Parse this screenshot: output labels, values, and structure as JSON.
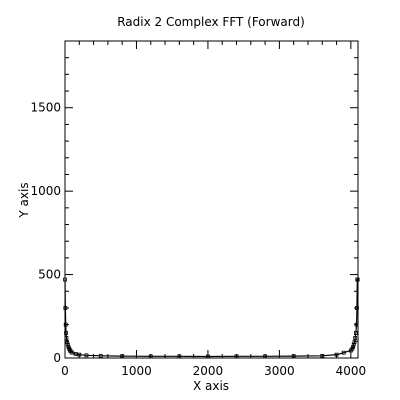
{
  "chart_data": {
    "type": "line",
    "title": "Radix 2 Complex FFT (Forward)",
    "xlabel": "X axis",
    "ylabel": "Y axis",
    "xlim": [
      0,
      4100
    ],
    "ylim": [
      0,
      1900
    ],
    "x_ticks": [
      0,
      1000,
      2000,
      3000,
      4000
    ],
    "x_tick_labels": [
      "0",
      "1000",
      "2000",
      "3000",
      "4000"
    ],
    "y_ticks": [
      0,
      500,
      1000,
      1500
    ],
    "y_tick_labels": [
      "0",
      "500",
      "1000",
      "1500"
    ],
    "grid": false,
    "series": [
      {
        "x": [
          0,
          5,
          10,
          15,
          20,
          30,
          40,
          50,
          60,
          70,
          80,
          100,
          150,
          200,
          300,
          500,
          800,
          1200,
          1600,
          2000,
          2400,
          2800,
          3200,
          3600,
          3800,
          3900,
          4000,
          4020,
          4030,
          4040,
          4050,
          4060,
          4070,
          4080,
          4085,
          4090,
          4095
        ],
        "y": [
          470,
          300,
          200,
          150,
          120,
          95,
          80,
          65,
          55,
          45,
          40,
          32,
          24,
          20,
          16,
          13,
          11,
          10,
          10,
          9,
          10,
          10,
          11,
          13,
          20,
          32,
          45,
          55,
          65,
          80,
          95,
          120,
          150,
          200,
          300,
          470,
          470
        ]
      }
    ]
  }
}
